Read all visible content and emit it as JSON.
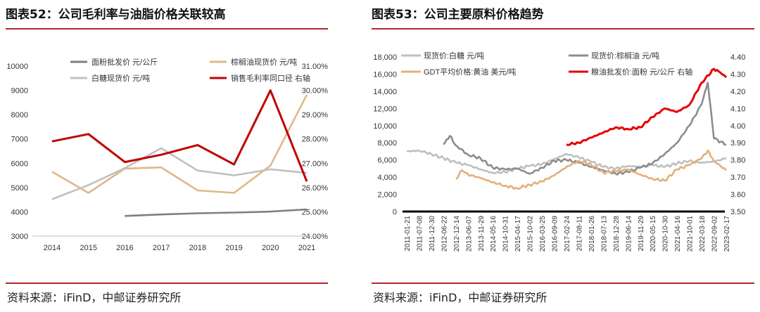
{
  "chart1": {
    "title": "图表52：公司毛利率与油脂价格关联较高",
    "source": "资料来源：iFinD，中邮证券研究所",
    "chart_data": {
      "type": "line",
      "x": [
        "2014",
        "2015",
        "2016",
        "2017",
        "2018",
        "2019",
        "2020",
        "2021"
      ],
      "left_axis": {
        "range": [
          3000,
          10000
        ],
        "ticks": [
          3000,
          4000,
          5000,
          6000,
          7000,
          8000,
          9000,
          10000
        ]
      },
      "right_axis": {
        "range": [
          0.24,
          0.31
        ],
        "ticks": [
          "24.00%",
          "25.00%",
          "26.00%",
          "27.00%",
          "28.00%",
          "29.00%",
          "30.00%",
          "31.00%"
        ],
        "values": [
          0.24,
          0.25,
          0.26,
          0.27,
          0.28,
          0.29,
          0.3,
          0.31
        ]
      },
      "series": [
        {
          "name": "面粉批发价 元/公斤",
          "color": "#7f7f7f",
          "axis": "left",
          "values": [
            null,
            null,
            3830,
            3890,
            3940,
            3970,
            4010,
            4100
          ]
        },
        {
          "name": "棕榈油现货价 元/吨",
          "color": "#deb887",
          "axis": "left",
          "values": [
            5650,
            4780,
            5780,
            5830,
            4880,
            4780,
            5900,
            8820
          ]
        },
        {
          "name": "白糖现货价 元/吨",
          "color": "#c0c0c0",
          "axis": "left",
          "values": [
            4520,
            5100,
            5800,
            6620,
            5700,
            5500,
            5750,
            5600
          ]
        },
        {
          "name": "销售毛利率同口径 右轴",
          "color": "#c00000",
          "axis": "right",
          "values": [
            0.279,
            0.282,
            0.2705,
            0.2735,
            0.2775,
            0.2695,
            0.3,
            0.2625
          ]
        }
      ]
    }
  },
  "chart2": {
    "title": "图表53：公司主要原料价格趋势",
    "source": "资料来源：iFinD，中邮证券研究所",
    "chart_data": {
      "type": "line",
      "x_labels": [
        "2011-01-21",
        "2011-07-08",
        "2011-12-30",
        "2012-06-22",
        "2012-12-14",
        "2013-06-07",
        "2013-11-29",
        "2014-05-16",
        "2014-10-31",
        "2015-04-17",
        "2015-10-02",
        "2016-03-25",
        "2016-09-09",
        "2017-02-24",
        "2017-08-11",
        "2018-01-26",
        "2018-07-13",
        "2018-12-28",
        "2019-06-14",
        "2019-11-29",
        "2020-05-15",
        "2020-10-30",
        "2021-04-16",
        "2021-10-01",
        "2022-03-18",
        "2022-09-02",
        "2023-02-17"
      ],
      "left_axis": {
        "range": [
          0,
          18000
        ],
        "ticks": [
          "0",
          "2,000",
          "4,000",
          "6,000",
          "8,000",
          "10,000",
          "12,000",
          "14,000",
          "16,000",
          "18,000"
        ],
        "values": [
          0,
          2000,
          4000,
          6000,
          8000,
          10000,
          12000,
          14000,
          16000,
          18000
        ]
      },
      "right_axis": {
        "range": [
          3.5,
          4.4
        ],
        "ticks": [
          "3.50",
          "3.60",
          "3.70",
          "3.80",
          "3.90",
          "4.00",
          "4.10",
          "4.20",
          "4.30",
          "4.40"
        ],
        "values": [
          3.5,
          3.6,
          3.7,
          3.8,
          3.9,
          4.0,
          4.1,
          4.2,
          4.3,
          4.4
        ]
      },
      "series": [
        {
          "name": "现货价:白糖  元/吨",
          "color": "#bfbfbf",
          "axis": "left",
          "points": [
            [
              0,
              7000
            ],
            [
              1,
              7100
            ],
            [
              2,
              6700
            ],
            [
              3,
              6200
            ],
            [
              4,
              5700
            ],
            [
              5,
              5400
            ],
            [
              6,
              4900
            ],
            [
              7,
              4500
            ],
            [
              8,
              4600
            ],
            [
              9,
              5000
            ],
            [
              10,
              5300
            ],
            [
              11,
              5500
            ],
            [
              12,
              6100
            ],
            [
              13,
              6700
            ],
            [
              14,
              6300
            ],
            [
              15,
              5800
            ],
            [
              16,
              5200
            ],
            [
              17,
              5000
            ],
            [
              18,
              5300
            ],
            [
              19,
              5200
            ],
            [
              20,
              5400
            ],
            [
              21,
              5200
            ],
            [
              22,
              5600
            ],
            [
              23,
              5900
            ],
            [
              24,
              5700
            ],
            [
              25,
              5800
            ],
            [
              26,
              6200
            ]
          ]
        },
        {
          "name": "现货价:棕榈油  元/吨",
          "color": "#8c8c8c",
          "axis": "left",
          "points": [
            [
              3,
              7800
            ],
            [
              3.5,
              8800
            ],
            [
              4,
              7700
            ],
            [
              5,
              6600
            ],
            [
              6,
              6200
            ],
            [
              7,
              5100
            ],
            [
              8,
              4900
            ],
            [
              9,
              5000
            ],
            [
              10,
              4400
            ],
            [
              11,
              5100
            ],
            [
              12,
              5900
            ],
            [
              13,
              6000
            ],
            [
              14,
              5700
            ],
            [
              15,
              5200
            ],
            [
              16,
              4800
            ],
            [
              17,
              4400
            ],
            [
              18,
              4600
            ],
            [
              19,
              5100
            ],
            [
              20,
              5600
            ],
            [
              21,
              6700
            ],
            [
              22,
              8000
            ],
            [
              23,
              10000
            ],
            [
              24,
              12500
            ],
            [
              24.5,
              15000
            ],
            [
              25,
              8500
            ],
            [
              26,
              7800
            ]
          ]
        },
        {
          "name": "GDT平均价格:黄油  美元/吨",
          "color": "#e2b07a",
          "axis": "left",
          "points": [
            [
              4,
              3800
            ],
            [
              4.5,
              4800
            ],
            [
              5,
              4300
            ],
            [
              6,
              3900
            ],
            [
              7,
              3400
            ],
            [
              8,
              3000
            ],
            [
              9,
              2700
            ],
            [
              10,
              3100
            ],
            [
              11,
              3500
            ],
            [
              12,
              4200
            ],
            [
              13,
              5200
            ],
            [
              14,
              5900
            ],
            [
              15,
              5500
            ],
            [
              16,
              4500
            ],
            [
              17,
              4700
            ],
            [
              18,
              4900
            ],
            [
              19,
              4300
            ],
            [
              20,
              3800
            ],
            [
              21,
              3600
            ],
            [
              22,
              4900
            ],
            [
              23,
              5400
            ],
            [
              24,
              6200
            ],
            [
              24.5,
              7100
            ],
            [
              25,
              5900
            ],
            [
              26,
              4800
            ]
          ]
        },
        {
          "name": "粮油批发价:面粉  元/公斤  右轴",
          "color": "#e60000",
          "axis": "right",
          "points": [
            [
              13,
              3.89
            ],
            [
              14,
              3.9
            ],
            [
              15,
              3.93
            ],
            [
              16,
              3.96
            ],
            [
              17,
              3.99
            ],
            [
              18,
              3.98
            ],
            [
              19,
              3.99
            ],
            [
              20,
              4.05
            ],
            [
              21,
              4.1
            ],
            [
              22,
              4.08
            ],
            [
              23,
              4.12
            ],
            [
              24,
              4.25
            ],
            [
              25,
              4.33
            ],
            [
              25.5,
              4.31
            ],
            [
              26,
              4.28
            ]
          ]
        }
      ]
    }
  }
}
